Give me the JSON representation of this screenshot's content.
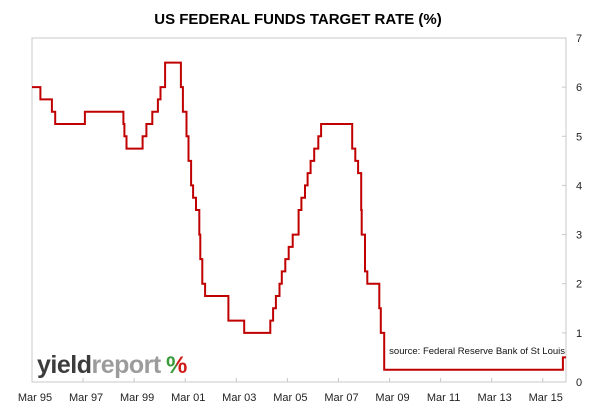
{
  "colors": {
    "line": "#c00000",
    "logo_dark": "#3c3c3c",
    "logo_light": "#9c9c9c",
    "logo_pct_green": "#3a9a3a",
    "logo_pct_red": "#d11a1a",
    "frame": "#c8c8c8"
  },
  "source_note": "source: Federal Reserve Bank of St Louis",
  "logo": {
    "part1": "yield",
    "part2": "report",
    "part3": "%"
  },
  "chart_data": {
    "type": "line",
    "title": "US FEDERAL FUNDS TARGET RATE (%)",
    "xlabel": "",
    "ylabel": "",
    "xlim": [
      1995.17,
      2016.08
    ],
    "ylim": [
      0,
      7
    ],
    "y_axis_side": "right",
    "yticks": [
      0,
      1,
      2,
      3,
      4,
      5,
      6,
      7
    ],
    "xticks": [
      {
        "label": "Mar 95",
        "x": 1995.17
      },
      {
        "label": "Mar 97",
        "x": 1997.17
      },
      {
        "label": "Mar 99",
        "x": 1999.17
      },
      {
        "label": "Mar 01",
        "x": 2001.17
      },
      {
        "label": "Mar 03",
        "x": 2003.17
      },
      {
        "label": "Mar 05",
        "x": 2005.17
      },
      {
        "label": "Mar 07",
        "x": 2007.17
      },
      {
        "label": "Mar 09",
        "x": 2009.17
      },
      {
        "label": "Mar 11",
        "x": 2011.17
      },
      {
        "label": "Mar 13",
        "x": 2013.17
      },
      {
        "label": "Mar 15",
        "x": 2015.17
      }
    ],
    "grid": false,
    "legend": "none",
    "series": [
      {
        "step": true,
        "points": [
          [
            1995.17,
            6.0
          ],
          [
            1995.5,
            5.75
          ],
          [
            1995.95,
            5.5
          ],
          [
            1996.08,
            5.25
          ],
          [
            1997.24,
            5.5
          ],
          [
            1998.75,
            5.25
          ],
          [
            1998.79,
            5.0
          ],
          [
            1998.87,
            4.75
          ],
          [
            1999.5,
            5.0
          ],
          [
            1999.65,
            5.25
          ],
          [
            1999.88,
            5.5
          ],
          [
            2000.1,
            5.75
          ],
          [
            2000.2,
            6.0
          ],
          [
            2000.38,
            6.5
          ],
          [
            2001.0,
            6.0
          ],
          [
            2001.08,
            5.5
          ],
          [
            2001.22,
            5.0
          ],
          [
            2001.3,
            4.5
          ],
          [
            2001.4,
            4.0
          ],
          [
            2001.48,
            3.75
          ],
          [
            2001.59,
            3.5
          ],
          [
            2001.72,
            3.0
          ],
          [
            2001.76,
            2.5
          ],
          [
            2001.84,
            2.0
          ],
          [
            2001.95,
            1.75
          ],
          [
            2002.86,
            1.25
          ],
          [
            2003.48,
            1.0
          ],
          [
            2004.5,
            1.25
          ],
          [
            2004.61,
            1.5
          ],
          [
            2004.72,
            1.75
          ],
          [
            2004.86,
            2.0
          ],
          [
            2004.95,
            2.25
          ],
          [
            2005.09,
            2.5
          ],
          [
            2005.22,
            2.75
          ],
          [
            2005.38,
            3.0
          ],
          [
            2005.61,
            3.5
          ],
          [
            2005.72,
            3.75
          ],
          [
            2005.86,
            4.0
          ],
          [
            2005.96,
            4.25
          ],
          [
            2006.08,
            4.5
          ],
          [
            2006.22,
            4.75
          ],
          [
            2006.38,
            5.0
          ],
          [
            2006.49,
            5.25
          ],
          [
            2007.71,
            4.75
          ],
          [
            2007.83,
            4.5
          ],
          [
            2007.94,
            4.25
          ],
          [
            2008.06,
            3.5
          ],
          [
            2008.08,
            3.0
          ],
          [
            2008.21,
            2.25
          ],
          [
            2008.3,
            2.0
          ],
          [
            2008.77,
            1.5
          ],
          [
            2008.83,
            1.0
          ],
          [
            2008.96,
            0.25
          ],
          [
            2015.96,
            0.5
          ],
          [
            2016.08,
            0.5
          ]
        ]
      }
    ]
  }
}
